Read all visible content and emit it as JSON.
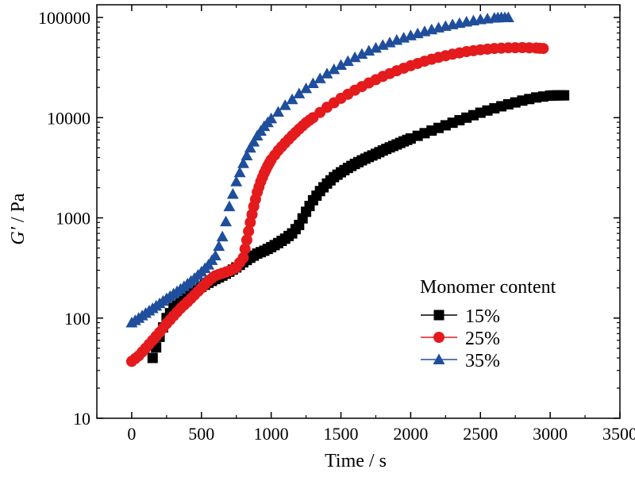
{
  "chart_data": {
    "type": "scatter",
    "xlabel": "Time / s",
    "ylabel_prefix": "G'",
    "ylabel_suffix": " / Pa",
    "xlim": [
      -250,
      3500
    ],
    "ylim": [
      10,
      100000
    ],
    "yscale": "log",
    "xticks": [
      0,
      500,
      1000,
      1500,
      2000,
      2500,
      3000,
      3500
    ],
    "xtick_labels": [
      "0",
      "500",
      "1000",
      "1500",
      "2000",
      "2500",
      "3000",
      "3500"
    ],
    "yticks": [
      10,
      100,
      1000,
      10000,
      100000
    ],
    "ytick_labels": [
      "10",
      "100",
      "1000",
      "10000",
      "100000"
    ],
    "grid": false,
    "legend": {
      "title": "Monomer content",
      "placement": "right-middle"
    },
    "series": [
      {
        "name": "15%",
        "label": "15%",
        "marker": "square",
        "color": "#000000",
        "x": [
          150,
          200,
          250,
          300,
          350,
          400,
          450,
          500,
          550,
          600,
          650,
          700,
          750,
          800,
          850,
          900,
          950,
          1000,
          1050,
          1100,
          1150,
          1200,
          1250,
          1300,
          1350,
          1400,
          1450,
          1500,
          1550,
          1600,
          1650,
          1700,
          1750,
          1800,
          1850,
          1900,
          1950,
          2000,
          2100,
          2200,
          2300,
          2400,
          2500,
          2600,
          2700,
          2800,
          2900,
          3000,
          3050,
          3100
        ],
        "y": [
          40,
          65,
          100,
          125,
          145,
          165,
          185,
          205,
          225,
          245,
          265,
          290,
          320,
          360,
          400,
          440,
          470,
          510,
          560,
          620,
          700,
          850,
          1150,
          1500,
          1850,
          2200,
          2550,
          2850,
          3150,
          3450,
          3750,
          4050,
          4350,
          4700,
          5050,
          5400,
          5800,
          6200,
          7000,
          7900,
          8900,
          10000,
          11200,
          12400,
          13600,
          14800,
          15900,
          16600,
          16700,
          16700
        ]
      },
      {
        "name": "25%",
        "label": "25%",
        "marker": "circle",
        "color": "#e41a1c",
        "x": [
          0,
          50,
          100,
          150,
          200,
          250,
          300,
          350,
          400,
          450,
          500,
          550,
          600,
          650,
          700,
          750,
          800,
          825,
          850,
          875,
          900,
          925,
          950,
          975,
          1000,
          1050,
          1100,
          1150,
          1200,
          1250,
          1300,
          1400,
          1500,
          1600,
          1700,
          1800,
          1900,
          2000,
          2100,
          2200,
          2300,
          2400,
          2500,
          2600,
          2700,
          2800,
          2900,
          2950
        ],
        "y": [
          37,
          42,
          50,
          60,
          72,
          88,
          105,
          125,
          145,
          170,
          200,
          235,
          265,
          280,
          295,
          320,
          400,
          600,
          900,
          1300,
          1800,
          2300,
          2800,
          3300,
          3800,
          4700,
          5600,
          6600,
          7700,
          8900,
          10000,
          12700,
          15600,
          18800,
          22200,
          25800,
          29400,
          33000,
          36600,
          40000,
          43000,
          45600,
          47600,
          49000,
          49800,
          50000,
          49500,
          49000
        ]
      },
      {
        "name": "35%",
        "label": "35%",
        "marker": "triangle",
        "color": "#1f4e9c",
        "x": [
          0,
          50,
          100,
          150,
          200,
          250,
          300,
          350,
          400,
          450,
          500,
          550,
          600,
          650,
          700,
          750,
          800,
          850,
          900,
          950,
          1000,
          1100,
          1200,
          1300,
          1400,
          1500,
          1600,
          1700,
          1800,
          1900,
          2000,
          2100,
          2200,
          2300,
          2400,
          2500,
          2600,
          2650,
          2700
        ],
        "y": [
          90,
          100,
          112,
          125,
          140,
          157,
          175,
          195,
          220,
          250,
          290,
          340,
          420,
          650,
          1300,
          2300,
          3500,
          5000,
          6600,
          8200,
          9800,
          13300,
          17400,
          22000,
          27500,
          33500,
          40000,
          46500,
          53000,
          59500,
          66000,
          72500,
          79000,
          85000,
          90500,
          95500,
          99000,
          100000,
          100000
        ]
      }
    ]
  }
}
